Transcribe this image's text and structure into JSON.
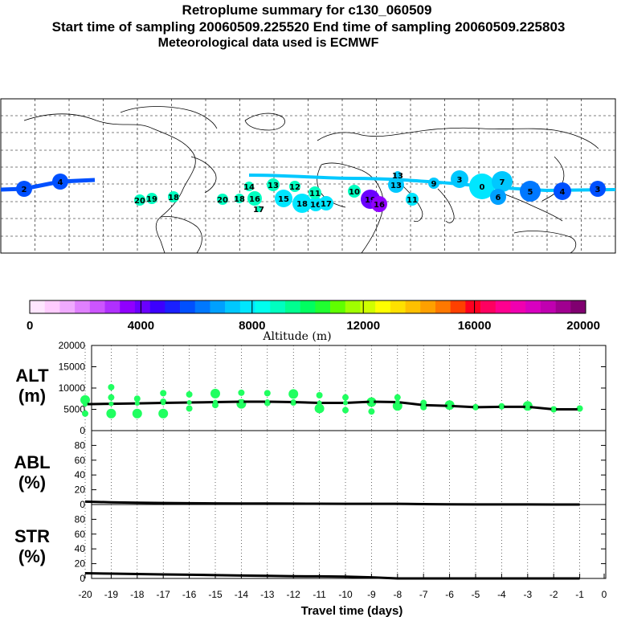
{
  "header": {
    "title": "Retroplume summary for c130_060509",
    "sampling": "Start time of sampling 20060509.225520     End time of sampling 20060509.225803",
    "met": "Meteorological data used is ECMWF"
  },
  "colorbar": {
    "title": "Altitude (m)",
    "tick_labels": [
      "0",
      "4000",
      "8000",
      "12000",
      "16000",
      "20000"
    ],
    "colors": [
      "#ffe6ff",
      "#ffccff",
      "#f0aaff",
      "#e080ff",
      "#cc55ff",
      "#b030ff",
      "#9000ff",
      "#6a00ff",
      "#3c00ff",
      "#1a20ff",
      "#0050ff",
      "#0078ff",
      "#00a0ff",
      "#00c8ff",
      "#00e6ff",
      "#00ffee",
      "#00ffc0",
      "#00ff90",
      "#00ff60",
      "#20ff30",
      "#60ff00",
      "#a0ff00",
      "#d0ff00",
      "#ffff00",
      "#ffe000",
      "#ffc000",
      "#ffa000",
      "#ff7800",
      "#ff4000",
      "#ff0020",
      "#ff0060",
      "#ff0090",
      "#f000b0",
      "#d800c0",
      "#c000b0",
      "#a00090",
      "#800070"
    ]
  },
  "chart_data": [
    {
      "type": "scatter",
      "name": "alt-panel",
      "ylabel": "ALT (m)",
      "ylim": [
        0,
        20000
      ],
      "yticks": [
        "20000",
        "15000",
        "10000",
        "5000",
        "0"
      ],
      "x": [
        -20,
        -19,
        -18,
        -17,
        -16,
        -15,
        -14,
        -13,
        -12,
        -11,
        -10,
        -9,
        -8,
        -7,
        -6,
        -5,
        -4,
        -3,
        -2,
        -1
      ],
      "median": [
        6200,
        6300,
        6400,
        6500,
        6600,
        6700,
        6800,
        6800,
        6700,
        6500,
        6500,
        6800,
        6700,
        6000,
        5800,
        5500,
        5600,
        5600,
        5000,
        5000
      ],
      "clusters": [
        {
          "x": -20,
          "alt": 7200
        },
        {
          "x": -20,
          "alt": 4000
        },
        {
          "x": -19,
          "alt": 7800
        },
        {
          "x": -19,
          "alt": 4000
        },
        {
          "x": -19,
          "alt": 10200
        },
        {
          "x": -18,
          "alt": 7500
        },
        {
          "x": -18,
          "alt": 4000
        },
        {
          "x": -17,
          "alt": 8800
        },
        {
          "x": -17,
          "alt": 6800
        },
        {
          "x": -17,
          "alt": 4000
        },
        {
          "x": -16,
          "alt": 8500
        },
        {
          "x": -16,
          "alt": 5200
        },
        {
          "x": -15,
          "alt": 8700
        },
        {
          "x": -15,
          "alt": 6000
        },
        {
          "x": -14,
          "alt": 8900
        },
        {
          "x": -14,
          "alt": 6300
        },
        {
          "x": -13,
          "alt": 8800
        },
        {
          "x": -13,
          "alt": 6500
        },
        {
          "x": -12,
          "alt": 8600
        },
        {
          "x": -12,
          "alt": 6600
        },
        {
          "x": -11,
          "alt": 8300
        },
        {
          "x": -11,
          "alt": 5200
        },
        {
          "x": -10,
          "alt": 7800
        },
        {
          "x": -10,
          "alt": 4800
        },
        {
          "x": -9,
          "alt": 6700
        },
        {
          "x": -9,
          "alt": 4500
        },
        {
          "x": -8,
          "alt": 7800
        },
        {
          "x": -8,
          "alt": 5800
        },
        {
          "x": -7,
          "alt": 6500
        },
        {
          "x": -7,
          "alt": 5500
        },
        {
          "x": -6,
          "alt": 6000
        },
        {
          "x": -5,
          "alt": 5500
        },
        {
          "x": -4,
          "alt": 5700
        },
        {
          "x": -3,
          "alt": 5800
        },
        {
          "x": -2,
          "alt": 5000
        },
        {
          "x": -1,
          "alt": 5200
        }
      ]
    },
    {
      "type": "line",
      "name": "abl-panel",
      "ylabel": "ABL (%)",
      "ylim": [
        0,
        100
      ],
      "yticks": [
        "80",
        "60",
        "40",
        "20",
        "0"
      ],
      "x": [
        -20,
        -19,
        -18,
        -17,
        -16,
        -15,
        -14,
        -13,
        -12,
        -11,
        -10,
        -9,
        -8,
        -7,
        -6,
        -5,
        -4,
        -3,
        -2,
        -1
      ],
      "values": [
        4,
        3,
        2.5,
        2,
        1.8,
        1.5,
        1.4,
        1.3,
        1.2,
        1.1,
        1,
        1,
        1,
        0.5,
        0.3,
        0.2,
        0.1,
        0.1,
        0,
        0
      ]
    },
    {
      "type": "line",
      "name": "str-panel",
      "ylabel": "STR (%)",
      "ylim": [
        0,
        100
      ],
      "yticks": [
        "80",
        "60",
        "40",
        "20",
        "0"
      ],
      "x": [
        -20,
        -19,
        -18,
        -17,
        -16,
        -15,
        -14,
        -13,
        -12,
        -11,
        -10,
        -9,
        -8,
        -7,
        -6,
        -5,
        -4,
        -3,
        -2,
        -1
      ],
      "values": [
        7,
        6.5,
        6,
        5.5,
        5,
        4.5,
        4,
        3.5,
        3,
        2.8,
        2.5,
        1.5,
        0,
        0,
        0,
        0,
        0,
        0,
        0,
        0
      ],
      "xlabel": "Travel time (days)",
      "xticks": [
        "-20",
        "-19",
        "-18",
        "-17",
        "-16",
        "-15",
        "-14",
        "-13",
        "-12",
        "-11",
        "-10",
        "-9",
        "-8",
        "-7",
        "-6",
        "-5",
        "-4",
        "-3",
        "-2",
        "-1",
        "0"
      ]
    }
  ],
  "map": {
    "labels": [
      {
        "t": "2",
        "c": "#0050ff"
      },
      {
        "t": "4",
        "c": "#0050ff"
      },
      {
        "t": "20",
        "c": "#00ffc0"
      },
      {
        "t": "19",
        "c": "#00ffc0"
      },
      {
        "t": "18",
        "c": "#00ffc0"
      },
      {
        "t": "20",
        "c": "#00ffc0"
      },
      {
        "t": "18",
        "c": "#00ffc0"
      },
      {
        "t": "14",
        "c": "#00ffc0"
      },
      {
        "t": "16",
        "c": "#00ffc0"
      },
      {
        "t": "17",
        "c": "#00ffc0"
      },
      {
        "t": "13",
        "c": "#00ffc0"
      },
      {
        "t": "15",
        "c": "#00e6ff"
      },
      {
        "t": "12",
        "c": "#00ffc0"
      },
      {
        "t": "18",
        "c": "#00e6ff"
      },
      {
        "t": "16",
        "c": "#00e6ff"
      },
      {
        "t": "11",
        "c": "#00ffc0"
      },
      {
        "t": "17",
        "c": "#00e6ff"
      },
      {
        "t": "10",
        "c": "#00ffc0"
      },
      {
        "t": "19",
        "c": "#6a00ff"
      },
      {
        "t": "16",
        "c": "#9000ff"
      },
      {
        "t": "13",
        "c": "#00c8ff"
      },
      {
        "t": "13",
        "c": "#00c8ff"
      },
      {
        "t": "11",
        "c": "#00e6ff"
      },
      {
        "t": "9",
        "c": "#00c8ff"
      },
      {
        "t": "3",
        "c": "#00c8ff"
      },
      {
        "t": "0",
        "c": "#00e6ff"
      },
      {
        "t": "7",
        "c": "#00c8ff"
      },
      {
        "t": "6",
        "c": "#00a0ff"
      },
      {
        "t": "5",
        "c": "#0078ff"
      },
      {
        "t": "4",
        "c": "#0050ff"
      },
      {
        "t": "3",
        "c": "#0050ff"
      }
    ]
  }
}
